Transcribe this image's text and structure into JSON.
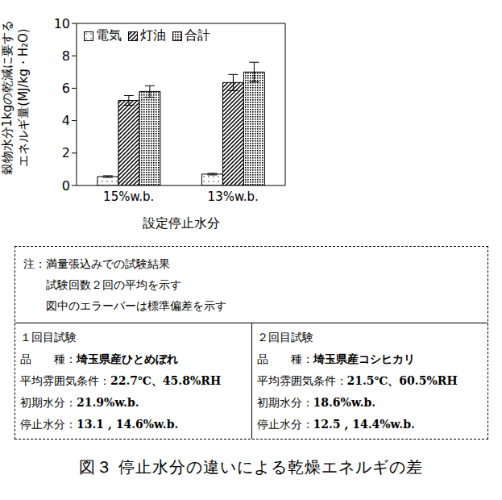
{
  "chart_data": {
    "type": "bar",
    "categories": [
      "15%w.b.",
      "13%w.b."
    ],
    "x_label": "設定停止水分",
    "y_label": [
      "穀物水分1kgの乾減に要する",
      "エネルギ量(MJ/kg・H₂O)"
    ],
    "series": [
      {
        "name": "電気",
        "color": "#ffffff",
        "values": [
          0.55,
          0.7
        ],
        "errors": [
          0.05,
          0.05
        ]
      },
      {
        "name": "灯油",
        "color": "#ffffff",
        "values": [
          5.25,
          6.35
        ],
        "errors": [
          0.3,
          0.5
        ]
      },
      {
        "name": "合計",
        "color": "#ffffff",
        "values": [
          5.8,
          7.0
        ],
        "errors": [
          0.35,
          0.6
        ]
      }
    ],
    "ylim": [
      0,
      10
    ],
    "yticks": [
      0,
      2,
      4,
      6,
      8,
      10
    ],
    "grid": false,
    "legend": "upper left"
  },
  "notes": [
    "注：満量張込みでの試験結果",
    "試験回数２回の平均を示す",
    "図中のエラーバーは標準偏差を示す"
  ],
  "trials": [
    {
      "title": "１回目試験",
      "rows": [
        {
          "label": "品　　種：",
          "value": "埼玉県産ひとめぼれ"
        },
        {
          "label": "平均雰囲気条件：",
          "value": "22.7℃、45.8%RH"
        },
        {
          "label": "初期水分：",
          "value": "21.9%w.b."
        },
        {
          "label": "停止水分：",
          "value": "13.1 , 14.6%w.b."
        }
      ]
    },
    {
      "title": "２回目試験",
      "rows": [
        {
          "label": "品　　種：",
          "value": "埼玉県産コシヒカリ"
        },
        {
          "label": "平均雰囲気条件：",
          "value": "21.5℃、60.5%RH"
        },
        {
          "label": "初期水分：",
          "value": "18.6%w.b."
        },
        {
          "label": "停止水分：",
          "value": "12.5 , 14.4%w.b."
        }
      ]
    }
  ],
  "caption": "図３ 停止水分の違いによる乾燥エネルギの差"
}
